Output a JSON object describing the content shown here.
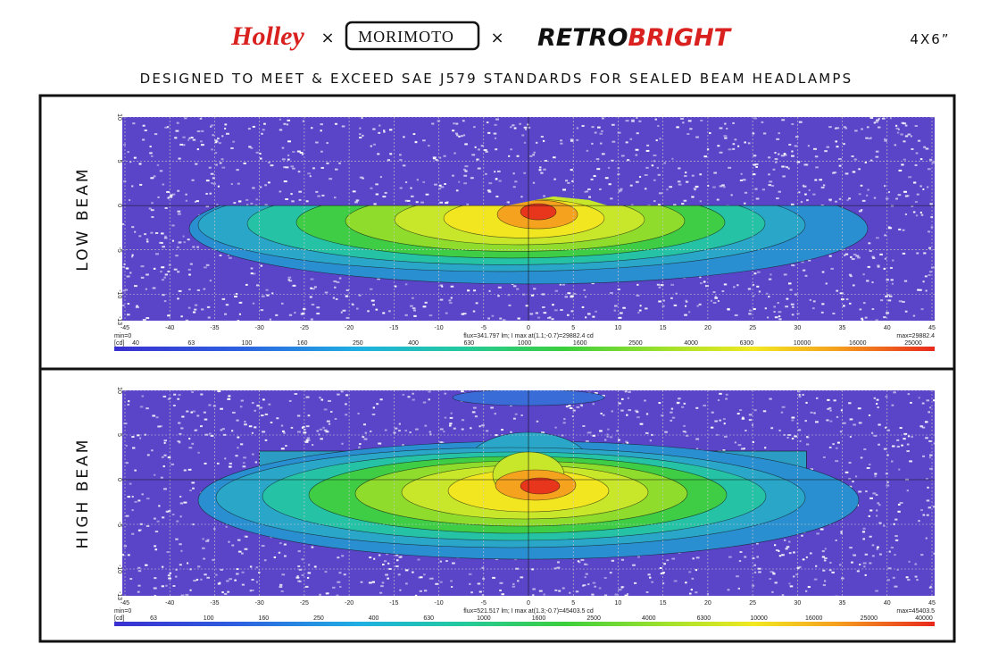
{
  "header": {
    "brands": {
      "holley": "Holley",
      "morimoto": "MORIMOTO",
      "retrobright": [
        "RETRO",
        "BRIGHT"
      ]
    },
    "separator": "×",
    "size": "4X6”"
  },
  "subtitle": "DESIGNED TO MEET & EXCEED SAE J579 STANDARDS FOR SEALED BEAM HEADLAMPS",
  "panels": [
    {
      "label": "LOW BEAM",
      "x_ticks": [
        "-45",
        "-40",
        "-35",
        "-30",
        "-25",
        "-20",
        "-15",
        "-10",
        "-5",
        "0",
        "5",
        "10",
        "15",
        "20",
        "25",
        "30",
        "35",
        "40",
        "45"
      ],
      "y_ticks": [
        "10",
        "5",
        "0",
        "-5",
        "-10",
        "-13"
      ],
      "min": "min=0",
      "info": "flux=341.797 lm; I max at(1.1;-0.7)=29882.4 cd",
      "max": "max=29882.4",
      "unit": "[cd]",
      "scale": [
        "40",
        "63",
        "100",
        "160",
        "250",
        "400",
        "630",
        "1000",
        "1600",
        "2500",
        "4000",
        "6300",
        "10000",
        "16000",
        "25000"
      ]
    },
    {
      "label": "HIGH BEAM",
      "x_ticks": [
        "-45",
        "-40",
        "-35",
        "-30",
        "-25",
        "-20",
        "-15",
        "-10",
        "-5",
        "0",
        "5",
        "10",
        "15",
        "20",
        "25",
        "30",
        "35",
        "40",
        "45"
      ],
      "y_ticks": [
        "10",
        "5",
        "0",
        "-5",
        "-10",
        "-13"
      ],
      "min": "min=0",
      "info": "flux=521.517 lm; I max at(1.3;-0.7)=45403.5 cd",
      "max": "max=45403.5",
      "unit": "[cd]",
      "scale": [
        "63",
        "100",
        "160",
        "250",
        "400",
        "630",
        "1000",
        "1600",
        "2500",
        "4000",
        "6300",
        "10000",
        "16000",
        "25000",
        "40000"
      ]
    }
  ]
}
